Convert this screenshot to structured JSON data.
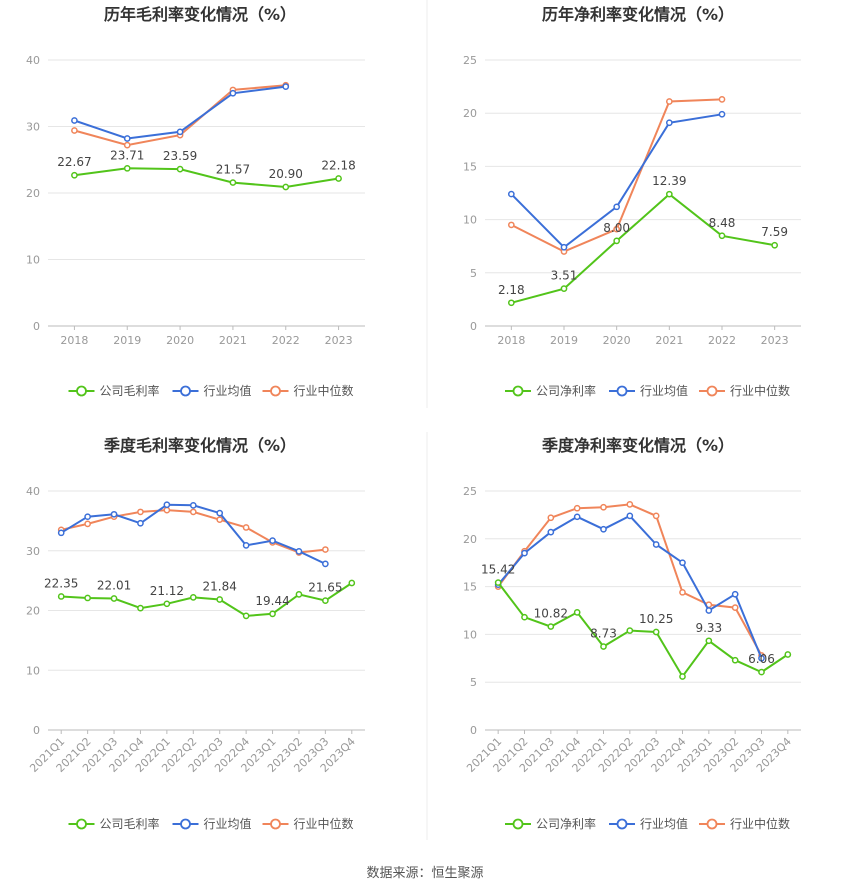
{
  "source_label": "数据来源：恒生聚源",
  "colors": {
    "company": "#52c41a",
    "avg": "#3b6fd8",
    "median": "#f0855a"
  },
  "chart_data": [
    {
      "type": "line",
      "title": "历年毛利率变化情况（%）",
      "categories": [
        "2018",
        "2019",
        "2020",
        "2021",
        "2022",
        "2023"
      ],
      "ylim": [
        0,
        40
      ],
      "yticks": [
        0,
        10,
        20,
        30,
        40
      ],
      "grid": true,
      "legend_position": "bottom",
      "series": [
        {
          "name": "公司毛利率",
          "color": "#52c41a",
          "values": [
            22.67,
            23.71,
            23.59,
            21.57,
            20.9,
            22.18
          ],
          "labels": [
            "22.67",
            "23.71",
            "23.59",
            "21.57",
            "20.90",
            "22.18"
          ]
        },
        {
          "name": "行业均值",
          "color": "#3b6fd8",
          "values": [
            30.9,
            28.2,
            29.2,
            35.0,
            36.0,
            null
          ]
        },
        {
          "name": "行业中位数",
          "color": "#f0855a",
          "values": [
            29.4,
            27.2,
            28.7,
            35.5,
            36.2,
            null
          ]
        }
      ]
    },
    {
      "type": "line",
      "title": "历年净利率变化情况（%）",
      "categories": [
        "2018",
        "2019",
        "2020",
        "2021",
        "2022",
        "2023"
      ],
      "ylim": [
        0,
        25
      ],
      "yticks": [
        0,
        5,
        10,
        15,
        20,
        25
      ],
      "grid": true,
      "legend_position": "bottom",
      "series": [
        {
          "name": "公司净利率",
          "color": "#52c41a",
          "values": [
            2.18,
            3.51,
            8.0,
            12.39,
            8.48,
            7.59
          ],
          "labels": [
            "2.18",
            "3.51",
            "8.00",
            "12.39",
            "8.48",
            "7.59"
          ]
        },
        {
          "name": "行业均值",
          "color": "#3b6fd8",
          "values": [
            12.4,
            7.4,
            11.2,
            19.1,
            19.9,
            null
          ]
        },
        {
          "name": "行业中位数",
          "color": "#f0855a",
          "values": [
            9.5,
            7.0,
            9.1,
            21.1,
            21.3,
            null
          ]
        }
      ]
    },
    {
      "type": "line",
      "title": "季度毛利率变化情况（%）",
      "categories": [
        "2021Q1",
        "2021Q2",
        "2021Q3",
        "2021Q4",
        "2022Q1",
        "2022Q2",
        "2022Q3",
        "2022Q4",
        "2023Q1",
        "2023Q2",
        "2023Q3",
        "2023Q4"
      ],
      "ylim": [
        0,
        40
      ],
      "yticks": [
        0,
        10,
        20,
        30,
        40
      ],
      "grid": true,
      "legend_position": "bottom",
      "series": [
        {
          "name": "公司毛利率",
          "color": "#52c41a",
          "values": [
            22.35,
            22.1,
            22.01,
            20.4,
            21.12,
            22.2,
            21.84,
            19.1,
            19.44,
            22.7,
            21.65,
            24.6
          ],
          "labels": [
            "22.35",
            "",
            "22.01",
            "",
            "21.12",
            "",
            "21.84",
            "",
            "19.44",
            "",
            "21.65",
            ""
          ]
        },
        {
          "name": "行业均值",
          "color": "#3b6fd8",
          "values": [
            33.0,
            35.7,
            36.1,
            34.6,
            37.7,
            37.6,
            36.3,
            30.9,
            31.7,
            29.9,
            27.8,
            null
          ]
        },
        {
          "name": "行业中位数",
          "color": "#f0855a",
          "values": [
            33.5,
            34.5,
            35.7,
            36.5,
            36.8,
            36.5,
            35.2,
            33.9,
            31.4,
            29.7,
            30.2,
            null
          ]
        }
      ]
    },
    {
      "type": "line",
      "title": "季度净利率变化情况（%）",
      "categories": [
        "2021Q1",
        "2021Q2",
        "2021Q3",
        "2021Q4",
        "2022Q1",
        "2022Q2",
        "2022Q3",
        "2022Q4",
        "2023Q1",
        "2023Q2",
        "2023Q3",
        "2023Q4"
      ],
      "ylim": [
        0,
        25
      ],
      "yticks": [
        0,
        5,
        10,
        15,
        20,
        25
      ],
      "grid": true,
      "legend_position": "bottom",
      "series": [
        {
          "name": "公司净利率",
          "color": "#52c41a",
          "values": [
            15.42,
            11.8,
            10.82,
            12.3,
            8.73,
            10.4,
            10.25,
            5.6,
            9.33,
            7.3,
            6.06,
            7.9
          ],
          "labels": [
            "15.42",
            "",
            "10.82",
            "",
            "8.73",
            "",
            "10.25",
            "",
            "9.33",
            "",
            "6.06",
            ""
          ]
        },
        {
          "name": "行业均值",
          "color": "#3b6fd8",
          "values": [
            15.2,
            18.5,
            20.7,
            22.3,
            21.0,
            22.4,
            19.4,
            17.5,
            12.5,
            14.2,
            7.5,
            null
          ]
        },
        {
          "name": "行业中位数",
          "color": "#f0855a",
          "values": [
            15.0,
            18.7,
            22.2,
            23.2,
            23.3,
            23.6,
            22.4,
            14.4,
            13.1,
            12.8,
            7.8,
            null
          ]
        }
      ]
    }
  ]
}
